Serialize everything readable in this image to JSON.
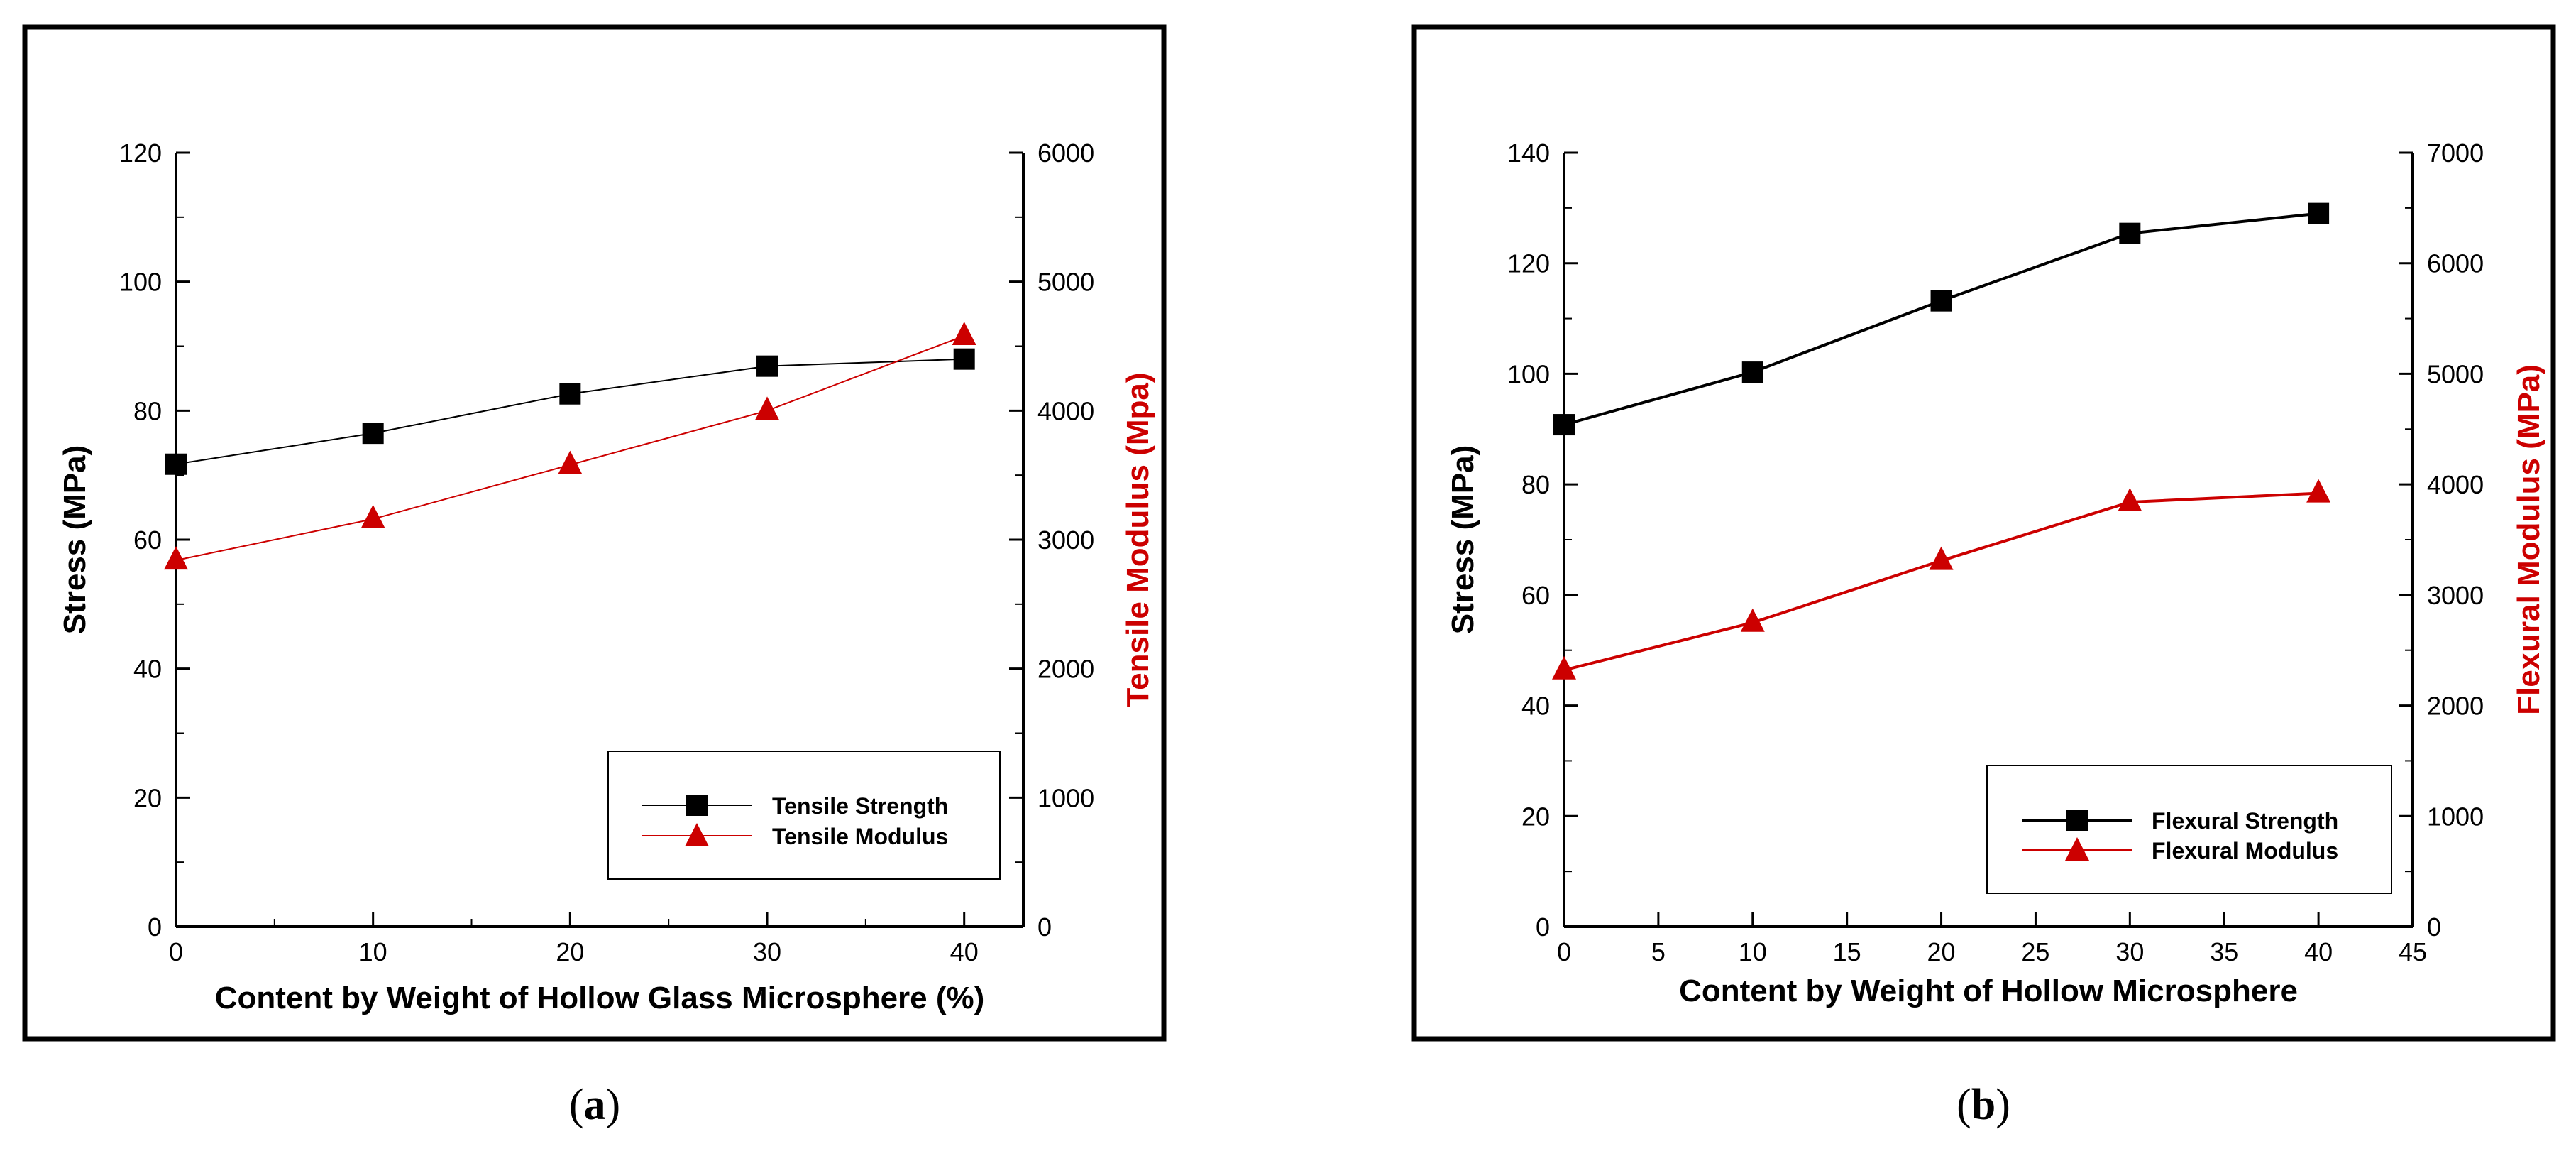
{
  "colors": {
    "frame": "#000000",
    "strength": "#000000",
    "modulus": "#cc0000"
  },
  "chart_data": [
    {
      "type": "line",
      "panel_label": "a",
      "xlabel": "Content by Weight of Hollow Glass Microsphere (%)",
      "ylabel": "Stress (MPa)",
      "y2label": "Tensile Modulus (Mpa)",
      "xlim": [
        0,
        43
      ],
      "ylim": [
        0,
        120
      ],
      "y2lim": [
        0,
        6000
      ],
      "x_ticks": [
        0,
        10,
        20,
        30,
        40
      ],
      "y_ticks": [
        0,
        20,
        40,
        60,
        80,
        100,
        120
      ],
      "y2_ticks": [
        0,
        1000,
        2000,
        3000,
        4000,
        5000,
        6000
      ],
      "legend_position": "lower-right",
      "series": [
        {
          "name": "Tensile Strength",
          "axis": "left",
          "marker": "square",
          "x": [
            0,
            10,
            20,
            30,
            40
          ],
          "values": [
            71.7,
            76.5,
            82.6,
            86.9,
            88.0
          ]
        },
        {
          "name": "Tensile Modulus",
          "axis": "right",
          "marker": "triangle",
          "x": [
            0,
            10,
            20,
            30,
            40
          ],
          "values": [
            2840,
            3160,
            3580,
            4000,
            4580
          ]
        }
      ]
    },
    {
      "type": "line",
      "panel_label": "b",
      "xlabel": "Content by Weight of Hollow Microsphere",
      "ylabel": "Stress (MPa)",
      "y2label": "Flexural Modulus (MPa)",
      "xlim": [
        0,
        45
      ],
      "ylim": [
        0,
        140
      ],
      "y2lim": [
        0,
        7000
      ],
      "x_ticks": [
        0,
        5,
        10,
        15,
        20,
        25,
        30,
        35,
        40,
        45
      ],
      "y_ticks": [
        0,
        20,
        40,
        60,
        80,
        100,
        120,
        140
      ],
      "y2_ticks": [
        0,
        1000,
        2000,
        3000,
        4000,
        5000,
        6000,
        7000
      ],
      "legend_position": "lower-right",
      "series": [
        {
          "name": "Flexural Strength",
          "axis": "left",
          "marker": "square",
          "x": [
            0,
            10,
            20,
            30,
            40
          ],
          "values": [
            90.8,
            100.3,
            113.2,
            125.4,
            129.0
          ]
        },
        {
          "name": "Flexural Modulus",
          "axis": "right",
          "marker": "triangle",
          "x": [
            0,
            10,
            20,
            30,
            40
          ],
          "values": [
            2320,
            2750,
            3310,
            3840,
            3920
          ]
        }
      ]
    }
  ]
}
